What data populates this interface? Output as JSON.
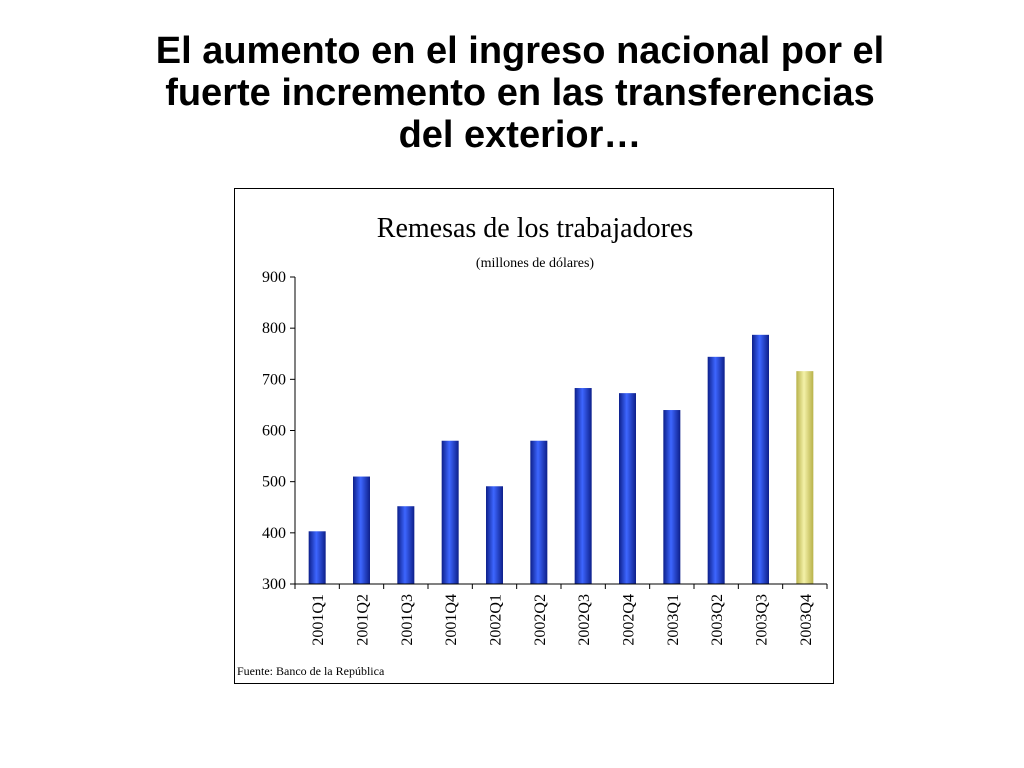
{
  "slide": {
    "title_lines": [
      "El aumento en el ingreso nacional por el",
      "fuerte incremento en las transferencias",
      "del exterior…"
    ]
  },
  "chart_data": {
    "type": "bar",
    "title": "Remesas de los trabajadores",
    "subtitle": "(millones de dólares)",
    "categories": [
      "2001Q1",
      "2001Q2",
      "2001Q3",
      "2001Q4",
      "2002Q1",
      "2002Q2",
      "2002Q3",
      "2002Q4",
      "2003Q1",
      "2003Q2",
      "2003Q3",
      "2003Q4"
    ],
    "values": [
      403,
      510,
      452,
      580,
      491,
      580,
      683,
      673,
      640,
      744,
      787,
      716
    ],
    "ylim": [
      300,
      900
    ],
    "yticks": [
      300,
      400,
      500,
      600,
      700,
      800,
      900
    ],
    "grid": false,
    "colors": {
      "bar": "#2547d8",
      "bar_highlight": "#e6e38a"
    },
    "highlight_category": "2003Q4",
    "source": "Fuente: Banco de la República"
  }
}
